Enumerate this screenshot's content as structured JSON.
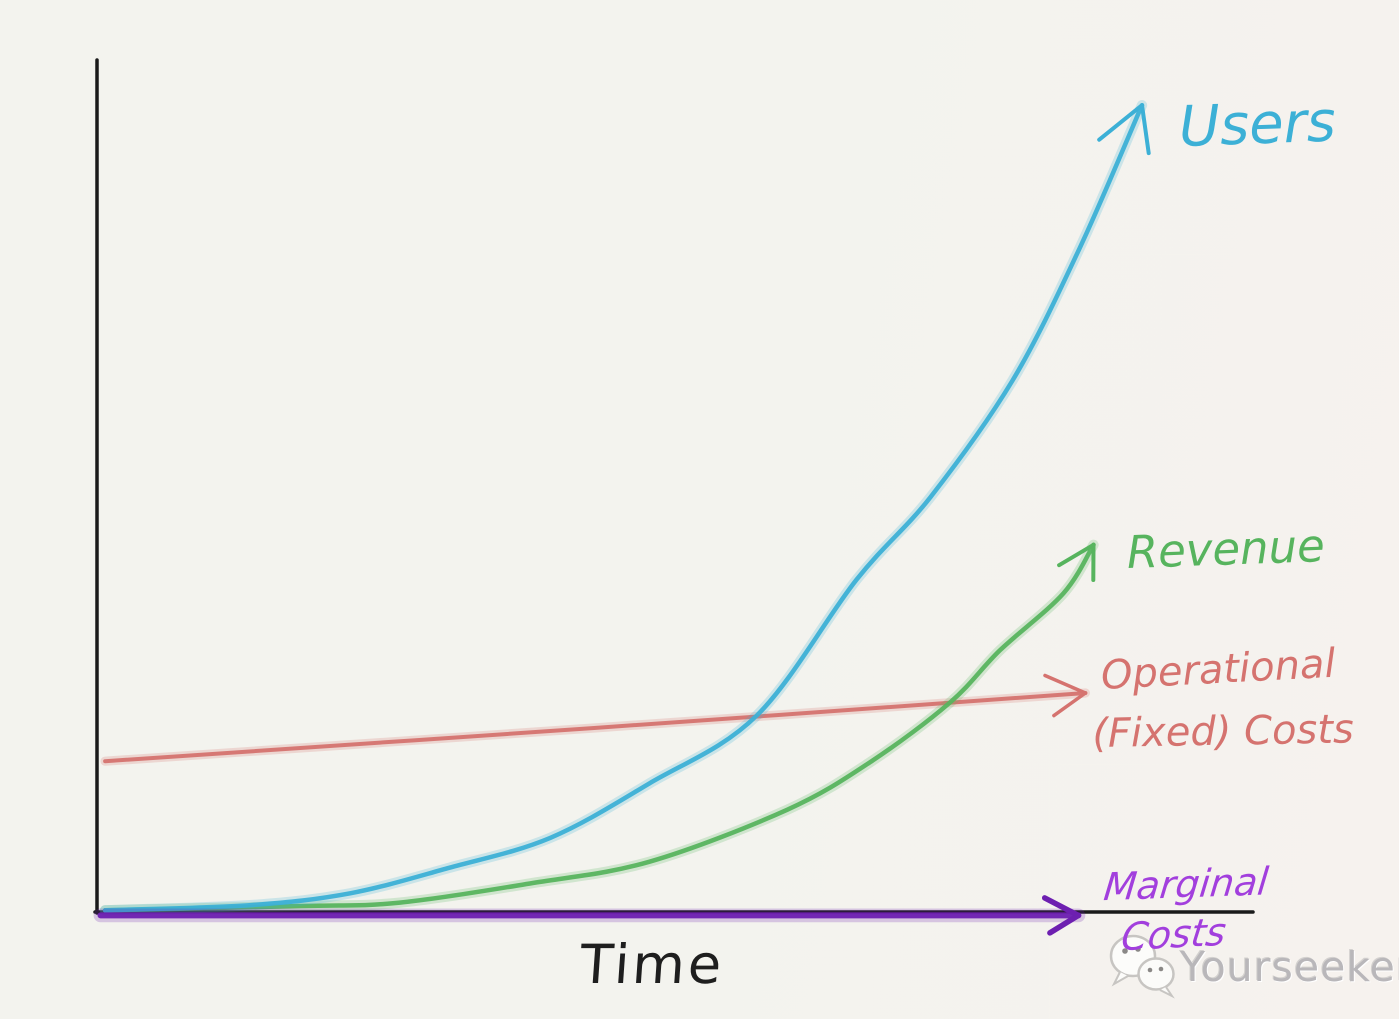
{
  "page": {
    "background": "#f3f3ee",
    "ink": "#1e1e1e"
  },
  "chart_data": {
    "type": "line",
    "title": "",
    "xlabel": "Time",
    "ylabel": "",
    "x_range": [
      0,
      1
    ],
    "y_range": [
      0,
      1
    ],
    "grid": false,
    "axes": {
      "color": "#1a1a1a",
      "x_ticks": [],
      "y_ticks": []
    },
    "legend_position": "inline-right-annotations",
    "series": [
      {
        "name": "Operational (Fixed) Costs",
        "color": "#d5736f",
        "line_width": 4,
        "arrow_length": 44,
        "points": [
          [
            0.007,
            0.177
          ],
          [
            0.43,
            0.216
          ],
          [
            0.855,
            0.257
          ]
        ]
      },
      {
        "name": "Revenue",
        "color": "#57b45e",
        "line_width": 4.5,
        "arrow_length": 40,
        "points": [
          [
            0.007,
            0.002
          ],
          [
            0.176,
            0.007
          ],
          [
            0.262,
            0.011
          ],
          [
            0.377,
            0.034
          ],
          [
            0.478,
            0.059
          ],
          [
            0.597,
            0.12
          ],
          [
            0.669,
            0.176
          ],
          [
            0.738,
            0.246
          ],
          [
            0.781,
            0.307
          ],
          [
            0.836,
            0.374
          ],
          [
            0.862,
            0.431
          ]
        ]
      },
      {
        "name": "Users",
        "color": "#3cb0d6",
        "line_width": 4.5,
        "arrow_length": 55,
        "points": [
          [
            0.007,
            0.002
          ],
          [
            0.132,
            0.008
          ],
          [
            0.219,
            0.022
          ],
          [
            0.305,
            0.052
          ],
          [
            0.392,
            0.087
          ],
          [
            0.478,
            0.151
          ],
          [
            0.571,
            0.231
          ],
          [
            0.657,
            0.39
          ],
          [
            0.721,
            0.487
          ],
          [
            0.792,
            0.624
          ],
          [
            0.85,
            0.779
          ],
          [
            0.904,
            0.947
          ]
        ]
      },
      {
        "name": "Marginal Costs",
        "color": "#6d1fb0",
        "line_width": 6,
        "arrow_length": 38,
        "points": [
          [
            0.003,
            -0.004
          ],
          [
            0.5,
            -0.004
          ],
          [
            0.849,
            -0.004
          ]
        ]
      }
    ],
    "annotations": {
      "users": {
        "text": "Users",
        "color": "#3cb0d6"
      },
      "revenue": {
        "text": "Revenue",
        "color": "#57b45e"
      },
      "op_line1": {
        "text": "Operational",
        "color": "#d5736f"
      },
      "op_line2": {
        "text": "(Fixed) Costs",
        "color": "#d5736f"
      },
      "marginal_line1": {
        "text": "Marginal",
        "color": "#a23fdd"
      },
      "marginal_line2": {
        "text": "Costs",
        "color": "#a23fdd"
      },
      "time": {
        "text": "Time",
        "color": "#1e1e1e"
      }
    }
  },
  "watermark": {
    "text": "Yourseeker",
    "icon": "wechat-icon",
    "color": "#b9b7ba"
  }
}
